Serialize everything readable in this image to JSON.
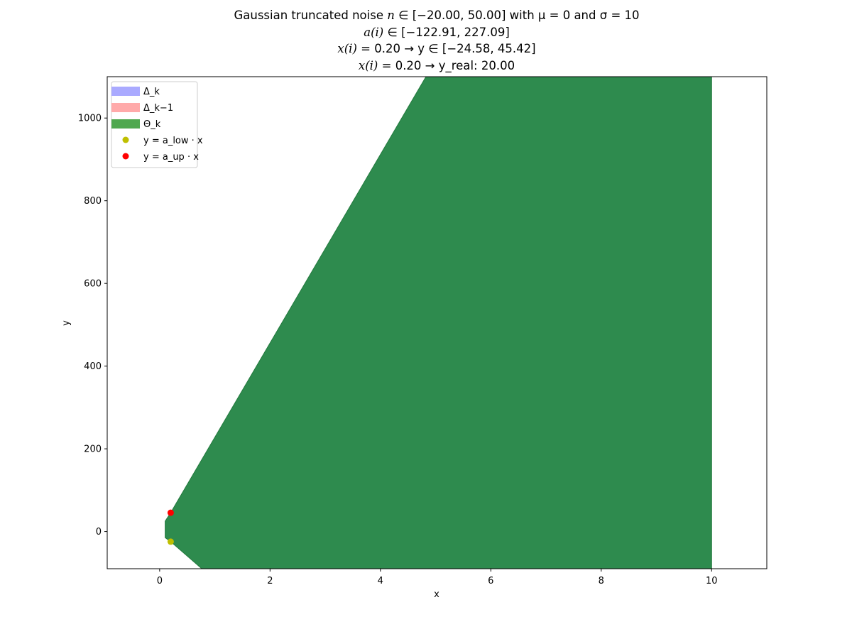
{
  "chart_data": {
    "type": "area",
    "title_lines": [
      [
        "Gaussian truncated noise ",
        "n",
        "∈[−20.00, 50.00]",
        " with μ = 0 and σ = 10"
      ],
      [
        "",
        "a(i)",
        " ∈ [−122.91, 227.09]",
        ""
      ],
      [
        "",
        "x(i)",
        " = 0.20 → ",
        "y∈[−24.58, 45.42]"
      ],
      [
        "",
        "x(i)",
        " = 0.20 → ",
        "y_real: 20.00"
      ]
    ],
    "title_text": [
      {
        "plain1": "Gaussian truncated noise ",
        "ital": "n",
        "plain2": " ∈ [−20.00, 50.00] with μ = 0 and σ = 10"
      },
      {
        "plain1": "",
        "ital": "a(i)",
        "plain2": " ∈ [−122.91, 227.09]"
      },
      {
        "plain1": "",
        "ital": "x(i)",
        "plain2": " = 0.20 → y ∈ [−24.58, 45.42]"
      },
      {
        "plain1": "",
        "ital": "x(i)",
        "plain2": " = 0.20 → y_real: 20.00"
      }
    ],
    "xlabel": "x",
    "ylabel": "y",
    "xlim": [
      -0.95,
      11.0
    ],
    "ylim": [
      -90,
      1100
    ],
    "xticks": [
      0,
      2,
      4,
      6,
      8,
      10
    ],
    "yticks": [
      0,
      200,
      400,
      600,
      800,
      1000
    ],
    "grid": false,
    "legend_position": "top-left",
    "legend": [
      {
        "label": "Δ_k",
        "symbol": "patch",
        "color": "#aaaaff"
      },
      {
        "label": "Δ_k−1",
        "symbol": "patch",
        "color": "#ffaaaa"
      },
      {
        "label": "Θ_k",
        "symbol": "patch",
        "color": "#4fa84f"
      },
      {
        "label": "y = a_low · x",
        "symbol": "dot",
        "color": "#bfbf00"
      },
      {
        "label": "y = a_up · x",
        "symbol": "dot",
        "color": "#ff0000"
      }
    ],
    "regions": [
      {
        "name": "Θ_k",
        "fill": "#2e8b4e",
        "edge": "#237a3e",
        "polygon": [
          [
            0.1,
            25
          ],
          [
            0.2,
            45.42
          ],
          [
            5.0,
            1140
          ],
          [
            10.0,
            1140
          ],
          [
            10.0,
            -100
          ],
          [
            0.85,
            -100
          ],
          [
            0.2,
            -24.58
          ],
          [
            0.1,
            -15
          ]
        ]
      }
    ],
    "points": [
      {
        "series": "y = a_up · x",
        "x": 0.2,
        "y": 45.42,
        "color": "#ff0000"
      },
      {
        "series": "y = a_low · x",
        "x": 0.2,
        "y": -24.58,
        "color": "#bfbf00"
      }
    ]
  }
}
